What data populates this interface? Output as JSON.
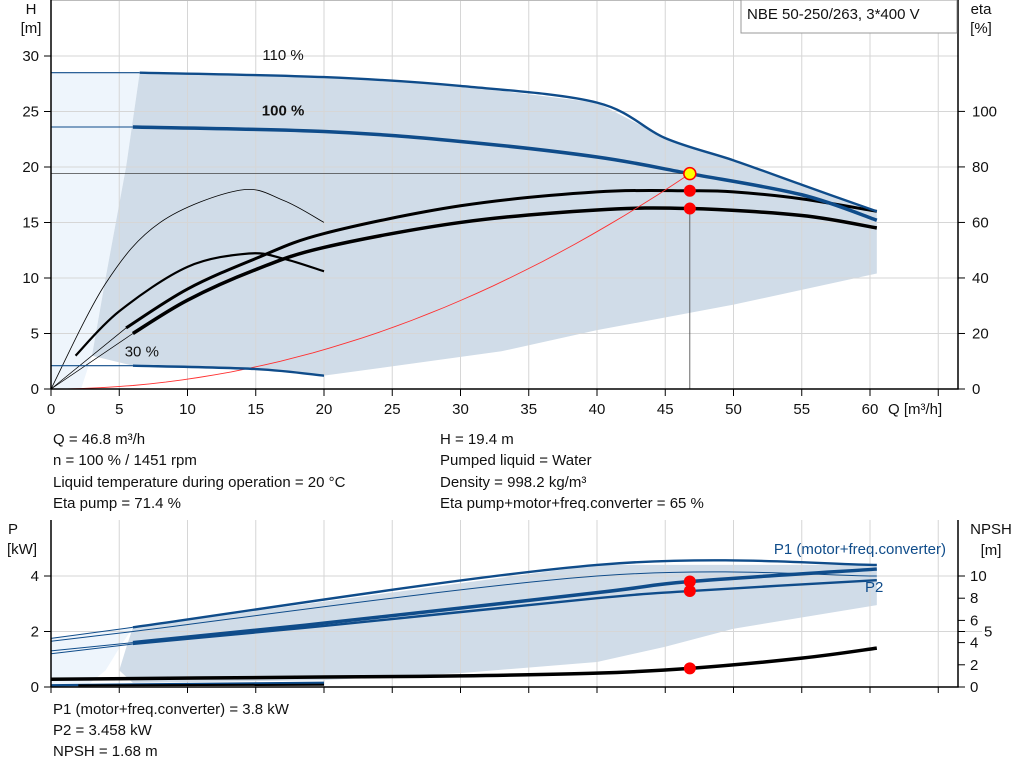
{
  "legend_box": "NBE 50-250/263, 3*400 V",
  "colors": {
    "curve_blue": "#0f4c8a",
    "region": "#d0dce8",
    "region_light": "#eef5fc",
    "system_curve": "#ff3030",
    "duty_dot": "#ff0000",
    "duty_marker": "#ffff00"
  },
  "chart_data": [
    {
      "type": "line",
      "name_id": "head-efficiency",
      "xlabel": "Q [m³/h]",
      "ylabel": [
        "H",
        "[m]"
      ],
      "y2label": [
        "eta",
        "[%]"
      ],
      "xlim": [
        0,
        66.5
      ],
      "ylim": [
        0,
        35
      ],
      "y2lim": [
        0,
        126
      ],
      "xticks": [
        0,
        5,
        10,
        15,
        20,
        25,
        30,
        35,
        40,
        45,
        50,
        55,
        60
      ],
      "yticks": [
        0,
        5,
        10,
        15,
        20,
        25,
        30
      ],
      "y2ticks": [
        0,
        20,
        40,
        60,
        80,
        100
      ],
      "grid": true,
      "curve_labels": [
        {
          "text": "110 %",
          "x": 17,
          "y": 30
        },
        {
          "text": "100 %",
          "x": 17,
          "y": 25
        },
        {
          "text": "30 %",
          "x": 6.5,
          "y": 3.3
        }
      ],
      "head_curves": [
        {
          "label": "110 %",
          "points": [
            [
              0,
              28.5
            ],
            [
              6.5,
              28.5
            ],
            [
              20,
              28.1
            ],
            [
              30,
              27.3
            ],
            [
              40,
              25.8
            ],
            [
              45,
              22.6
            ],
            [
              50,
              20.6
            ],
            [
              55,
              18.4
            ],
            [
              60.5,
              16
            ]
          ]
        },
        {
          "label": "100 %",
          "points": [
            [
              0,
              23.6
            ],
            [
              6,
              23.6
            ],
            [
              20,
              23.2
            ],
            [
              30,
              22.3
            ],
            [
              40,
              20.9
            ],
            [
              46.8,
              19.4
            ],
            [
              55,
              17.5
            ],
            [
              60.5,
              15.2
            ]
          ]
        },
        {
          "label": "30 %",
          "points": [
            [
              0,
              2.1
            ],
            [
              6,
              2.1
            ],
            [
              15,
              1.8
            ],
            [
              20,
              1.2
            ]
          ]
        }
      ],
      "region_lower": [
        [
          60.5,
          10.4
        ],
        [
          50,
          7.6
        ],
        [
          40,
          5.3
        ],
        [
          33,
          3.4
        ],
        [
          20,
          1.2
        ]
      ],
      "eta_curves": [
        {
          "points": [
            [
              5.5,
              22
            ],
            [
              10,
              36
            ],
            [
              15,
              47
            ],
            [
              20,
              56
            ],
            [
              30,
              66
            ],
            [
              40,
              71
            ],
            [
              46.8,
              71.4
            ],
            [
              50,
              71
            ],
            [
              55,
              68.5
            ],
            [
              60.5,
              64
            ]
          ]
        },
        {
          "points": [
            [
              6,
              20
            ],
            [
              10,
              32
            ],
            [
              15,
              43
            ],
            [
              20,
              51
            ],
            [
              30,
              60
            ],
            [
              40,
              64.5
            ],
            [
              46.8,
              65
            ],
            [
              55,
              62.5
            ],
            [
              60.5,
              58
            ]
          ]
        },
        {
          "points": [
            [
              0,
              0
            ],
            [
              4,
              38
            ],
            [
              8,
              60
            ],
            [
              13.8,
              71.6
            ],
            [
              17,
              68
            ],
            [
              20,
              60
            ]
          ]
        },
        {
          "points": [
            [
              1.8,
              12
            ],
            [
              5,
              28
            ],
            [
              10,
              44
            ],
            [
              14.5,
              48.8
            ],
            [
              17,
              47
            ],
            [
              20,
              42.4
            ]
          ]
        }
      ],
      "system_curve": {
        "h_at_duty": 19.4,
        "q_at_duty": 46.8
      },
      "duty_point": {
        "Q": 46.8,
        "H": 19.4,
        "eta_pump": 71.4,
        "eta_total": 65
      }
    },
    {
      "type": "line",
      "name_id": "power-npsh",
      "ylabel": [
        "P",
        "[kW]"
      ],
      "y2label": [
        "NPSH",
        "[m]"
      ],
      "xlim": [
        0,
        66.5
      ],
      "ylim": [
        0,
        6
      ],
      "y2lim": [
        0,
        15
      ],
      "yticks": [
        0,
        2,
        4
      ],
      "y2ticks": [
        0,
        2,
        4,
        5,
        6,
        8,
        10
      ],
      "grid": true,
      "series_labels": {
        "p1": "P1 (motor+freq.converter)",
        "p2": "P2"
      },
      "power_curves": [
        {
          "points": [
            [
              0,
              1.75
            ],
            [
              6,
              2.15
            ],
            [
              40,
              4.4
            ],
            [
              60.5,
              4.4
            ]
          ]
        },
        {
          "points": [
            [
              0,
              1.65
            ],
            [
              6,
              2.0
            ],
            [
              40,
              4.0
            ],
            [
              60.5,
              4.0
            ]
          ]
        },
        {
          "label": "P1 (motor+freq.converter)",
          "points": [
            [
              0,
              1.3
            ],
            [
              6,
              1.6
            ],
            [
              20,
              2.3
            ],
            [
              40,
              3.4
            ],
            [
              46.8,
              3.8
            ],
            [
              60.5,
              4.25
            ]
          ]
        },
        {
          "label": "P2",
          "points": [
            [
              0,
              1.2
            ],
            [
              6,
              1.55
            ],
            [
              20,
              2.2
            ],
            [
              40,
              3.2
            ],
            [
              46.8,
              3.458
            ],
            [
              60.5,
              3.85
            ]
          ]
        },
        {
          "points": [
            [
              0,
              0.06
            ],
            [
              20,
              0.15
            ]
          ]
        }
      ],
      "region_lower": [
        [
          60.5,
          2.95
        ],
        [
          50,
          2.1
        ],
        [
          45,
          1.45
        ],
        [
          40,
          0.9
        ],
        [
          30,
          0.5
        ],
        [
          20,
          0.25
        ],
        [
          6,
          0.15
        ]
      ],
      "npsh_curves": [
        {
          "label": "NPSH",
          "points": [
            [
              0,
              0.7
            ],
            [
              20,
              0.9
            ],
            [
              30,
              1.0
            ],
            [
              40,
              1.25
            ],
            [
              46.8,
              1.68
            ],
            [
              55,
              2.6
            ],
            [
              60.5,
              3.5
            ]
          ]
        },
        {
          "points": [
            [
              2,
              0.15
            ],
            [
              20,
              0.2
            ]
          ]
        }
      ],
      "duty_point": {
        "Q": 46.8,
        "P1": 3.8,
        "P2": 3.458,
        "NPSH": 1.68
      }
    }
  ],
  "info": {
    "left": [
      "Q = 46.8 m³/h",
      "n = 100 % / 1451 rpm",
      "Liquid temperature during operation = 20 °C",
      "Eta pump = 71.4 %"
    ],
    "right": [
      "H = 19.4 m",
      "Pumped liquid = Water",
      "Density = 998.2 kg/m³",
      "Eta pump+motor+freq.converter = 65 %"
    ],
    "bottom": [
      "P1 (motor+freq.converter) = 3.8 kW",
      "P2 = 3.458 kW",
      "NPSH = 1.68 m"
    ]
  }
}
